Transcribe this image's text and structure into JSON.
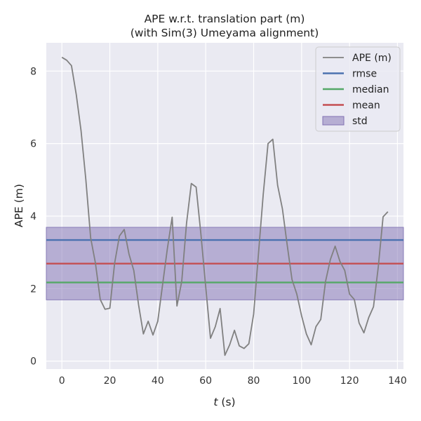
{
  "chart_data": {
    "type": "line",
    "title": "APE w.r.t. translation part (m)",
    "subtitle": "(with Sim(3) Umeyama alignment)",
    "xlabel_var": "t",
    "xlabel_unit": " (s)",
    "ylabel": "APE (m)",
    "xlim": [
      -6.5,
      142.5
    ],
    "ylim": [
      -0.22,
      8.78
    ],
    "xticks": [
      0,
      20,
      40,
      60,
      80,
      100,
      120,
      140
    ],
    "yticks": [
      0,
      2,
      4,
      6,
      8
    ],
    "grid": true,
    "legend_position": "top-right",
    "series": [
      {
        "name": "APE (m)",
        "color": "#808080",
        "x": [
          0,
          2,
          4,
          6,
          8,
          10,
          12,
          14,
          16,
          18,
          20,
          22,
          24,
          26,
          28,
          30,
          32,
          34,
          36,
          38,
          40,
          42,
          44,
          46,
          48,
          50,
          52,
          54,
          56,
          58,
          60,
          62,
          64,
          66,
          68,
          70,
          72,
          74,
          76,
          78,
          80,
          82,
          84,
          86,
          88,
          90,
          92,
          94,
          96,
          98,
          100,
          102,
          104,
          106,
          108,
          110,
          112,
          114,
          116,
          118,
          120,
          122,
          124,
          126,
          128,
          130,
          132,
          134,
          136
        ],
        "y": [
          8.38,
          8.3,
          8.15,
          7.35,
          6.35,
          5.0,
          3.4,
          2.7,
          1.7,
          1.43,
          1.46,
          2.7,
          3.45,
          3.63,
          2.95,
          2.5,
          1.55,
          0.75,
          1.1,
          0.72,
          1.1,
          2.1,
          3.1,
          3.97,
          1.52,
          2.2,
          3.8,
          4.9,
          4.8,
          3.5,
          2.05,
          0.63,
          0.95,
          1.45,
          0.16,
          0.45,
          0.85,
          0.42,
          0.35,
          0.48,
          1.3,
          2.95,
          4.6,
          6.0,
          6.12,
          4.85,
          4.2,
          3.2,
          2.25,
          1.85,
          1.25,
          0.75,
          0.45,
          0.95,
          1.15,
          2.2,
          2.8,
          3.17,
          2.75,
          2.5,
          1.85,
          1.7,
          1.05,
          0.78,
          1.2,
          1.5,
          2.6,
          3.98,
          4.12
        ]
      },
      {
        "name": "rmse",
        "color": "#4c72b0",
        "value": 3.34
      },
      {
        "name": "median",
        "color": "#55a868",
        "value": 2.17
      },
      {
        "name": "mean",
        "color": "#c44e52",
        "value": 2.69
      },
      {
        "name": "std",
        "color": "#8172b3",
        "range": [
          1.69,
          3.69
        ]
      }
    ]
  }
}
